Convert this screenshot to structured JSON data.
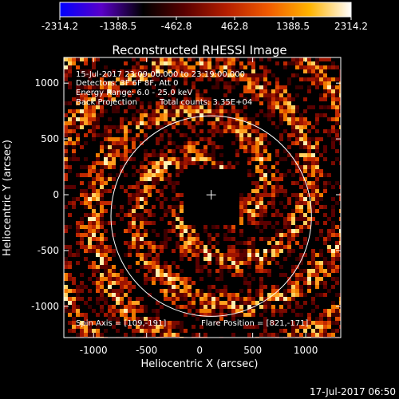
{
  "colorbar": {
    "tick_labels": [
      "-2314.2",
      "-1388.5",
      "-462.8",
      "462.8",
      "1388.5",
      "2314.2"
    ],
    "range": [
      -2314.2,
      2314.2
    ],
    "stops": [
      "#0000ff",
      "#5a00c8",
      "#000000",
      "#5a0000",
      "#b41e00",
      "#f05a00",
      "#ffb400",
      "#ffffff"
    ]
  },
  "plot": {
    "title": "Reconstructed RHESSI Image",
    "xlabel": "Heliocentric X (arcsec)",
    "ylabel": "Heliocentric Y (arcsec)",
    "x_ticks": [
      "-1000",
      "-500",
      "0",
      "500",
      "1000"
    ],
    "y_ticks": [
      "1000",
      "500",
      "0",
      "-500",
      "-1000"
    ],
    "xlim": [
      -1280,
      1330
    ],
    "ylim": [
      -1280,
      1230
    ],
    "annotations": {
      "time_range": "15-Jul-2017 23:09:00.000 to 23:19:00.000",
      "detectors": "Detectors: 3F 6F 8F, Att 0",
      "energy": "Energy Range: 6.0 - 25.0 keV",
      "method": "Back Projection",
      "total_counts": "Total counts: 3.35E+04",
      "spin_axis": "Spin Axis = [109,-191]",
      "flare_position": "Flare Position = [821,-171]"
    },
    "solar_limb_radius_arcsec": 945,
    "sun_center": [
      109,
      -191
    ]
  },
  "footer": {
    "timestamp": "17-Jul-2017 06:50"
  }
}
